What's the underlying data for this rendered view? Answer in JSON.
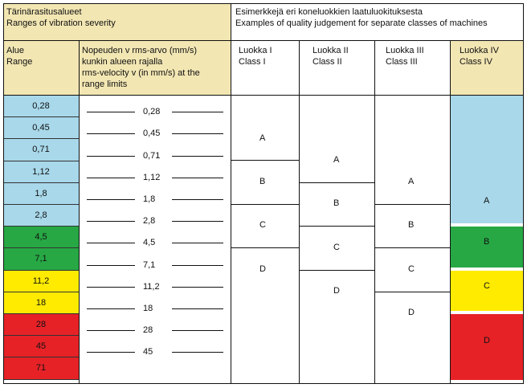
{
  "header": {
    "severity_fi": "Tärinärasitusalueet",
    "severity_en": "Ranges of vibration severity",
    "examples_fi": "Esimerkkejä eri koneluokkien laatuluokituksesta",
    "examples_en": "Examples of quality judgement for separate classes of machines"
  },
  "columns": {
    "range_fi": "Alue",
    "range_en": "Range",
    "velocity_line1": "Nopeuden v rms-arvo (mm/s)",
    "velocity_line2": "kunkin alueen rajalla",
    "velocity_line3": "rms-velocity v (in mm/s) at the",
    "velocity_line4": "range limits",
    "class1_fi": "Luokka I",
    "class1_en": "Class I",
    "class2_fi": "Luokka II",
    "class2_en": "Class II",
    "class3_fi": "Luokka III",
    "class3_en": "Class III",
    "class4_fi": "Luokka IV",
    "class4_en": "Class IV"
  },
  "ranges": [
    {
      "label": "0,28",
      "color": "#a8d8ea"
    },
    {
      "label": "0,45",
      "color": "#a8d8ea"
    },
    {
      "label": "0,71",
      "color": "#a8d8ea"
    },
    {
      "label": "1,12",
      "color": "#a8d8ea"
    },
    {
      "label": "1,8",
      "color": "#a8d8ea"
    },
    {
      "label": "2,8",
      "color": "#a8d8ea"
    },
    {
      "label": "4,5",
      "color": "#27a844"
    },
    {
      "label": "7,1",
      "color": "#27a844"
    },
    {
      "label": "11,2",
      "color": "#ffeb00"
    },
    {
      "label": "18",
      "color": "#ffeb00"
    },
    {
      "label": "28",
      "color": "#e62227"
    },
    {
      "label": "45",
      "color": "#e62227"
    },
    {
      "label": "71",
      "color": "#e62227"
    }
  ],
  "limits": [
    "0,28",
    "0,45",
    "0,71",
    "1,12",
    "1,8",
    "2,8",
    "4,5",
    "7,1",
    "11,2",
    "18",
    "28",
    "45"
  ],
  "class1": [
    "A",
    "B",
    "C",
    "D"
  ],
  "class2": [
    "A",
    "B",
    "C",
    "D"
  ],
  "class3": [
    "A",
    "B",
    "C",
    "D"
  ],
  "class4": [
    {
      "grade": "A",
      "color": "#a8d8ea"
    },
    {
      "grade": "B",
      "color": "#27a844"
    },
    {
      "grade": "C",
      "color": "#ffeb00"
    },
    {
      "grade": "D",
      "color": "#e62227"
    }
  ]
}
